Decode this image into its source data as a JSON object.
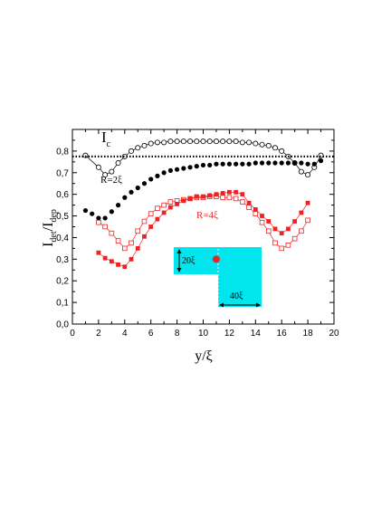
{
  "chart_data": {
    "type": "scatter",
    "xlabel": "y/ξ",
    "ylabel_main": "I",
    "ylabel_sub_num": "det",
    "ylabel_sub_den": "dep",
    "xlim": [
      0,
      20
    ],
    "ylim": [
      0.0,
      0.9
    ],
    "x_ticks": [
      0,
      2,
      4,
      6,
      8,
      10,
      12,
      14,
      16,
      18,
      20
    ],
    "y_ticks": [
      0.0,
      0.1,
      0.2,
      0.3,
      0.4,
      0.5,
      0.6,
      0.7,
      0.8
    ],
    "y_tick_labels": [
      "0,0",
      "0,1",
      "0,2",
      "0,3",
      "0,4",
      "0,5",
      "0,6",
      "0,7",
      "0,8"
    ],
    "grid": false,
    "reference_line": {
      "label": "I",
      "label_sub": "c",
      "value": 0.775,
      "style": "dotted"
    },
    "series": [
      {
        "marker": "circle-open",
        "color": "#000000",
        "connected": true,
        "x": [
          1,
          2,
          2.5,
          3,
          3.5,
          4,
          4.5,
          5,
          5.5,
          6,
          6.5,
          7,
          7.5,
          8,
          8.5,
          9,
          9.5,
          10,
          10.5,
          11,
          11.5,
          12,
          12.5,
          13,
          13.5,
          14,
          14.5,
          15,
          15.5,
          16,
          16.5,
          17,
          17.5,
          18,
          18.5,
          19
        ],
        "y": [
          0.78,
          0.725,
          0.69,
          0.705,
          0.745,
          0.775,
          0.8,
          0.815,
          0.825,
          0.835,
          0.84,
          0.84,
          0.845,
          0.845,
          0.845,
          0.845,
          0.845,
          0.845,
          0.845,
          0.845,
          0.845,
          0.845,
          0.845,
          0.84,
          0.84,
          0.835,
          0.83,
          0.825,
          0.815,
          0.8,
          0.775,
          0.745,
          0.705,
          0.69,
          0.725,
          0.78
        ]
      },
      {
        "marker": "circle-filled",
        "color": "#000000",
        "connected": false,
        "x": [
          1,
          1.5,
          2,
          2.5,
          3,
          3.5,
          4,
          4.5,
          5,
          5.5,
          6,
          6.5,
          7,
          7.5,
          8,
          8.5,
          9,
          9.5,
          10,
          10.5,
          11,
          11.5,
          12,
          12.5,
          13,
          13.5,
          14,
          14.5,
          15,
          15.5,
          16,
          16.5,
          17,
          17.5,
          18,
          18.5,
          19
        ],
        "y": [
          0.525,
          0.51,
          0.49,
          0.49,
          0.52,
          0.55,
          0.585,
          0.61,
          0.63,
          0.65,
          0.67,
          0.685,
          0.7,
          0.71,
          0.715,
          0.72,
          0.725,
          0.73,
          0.735,
          0.735,
          0.74,
          0.74,
          0.74,
          0.74,
          0.74,
          0.74,
          0.745,
          0.745,
          0.745,
          0.745,
          0.745,
          0.745,
          0.745,
          0.745,
          0.74,
          0.74,
          0.755
        ]
      },
      {
        "name": "R=2ξ",
        "marker": "square-open",
        "color": "#ee2222",
        "connected": true,
        "x": [
          2,
          2.5,
          3,
          3.5,
          4,
          4.5,
          5,
          5.5,
          6,
          6.5,
          7,
          7.5,
          8,
          8.5,
          9,
          9.5,
          10,
          10.5,
          11,
          11.5,
          12,
          12.5,
          13,
          13.5,
          14,
          14.5,
          15,
          15.5,
          16,
          16.5,
          17,
          17.5,
          18
        ],
        "y": [
          0.47,
          0.45,
          0.42,
          0.385,
          0.35,
          0.375,
          0.43,
          0.475,
          0.51,
          0.535,
          0.55,
          0.565,
          0.57,
          0.575,
          0.58,
          0.585,
          0.585,
          0.59,
          0.59,
          0.585,
          0.585,
          0.58,
          0.565,
          0.54,
          0.51,
          0.47,
          0.43,
          0.375,
          0.35,
          0.365,
          0.395,
          0.43,
          0.48
        ]
      },
      {
        "name": "R=4ξ",
        "marker": "square-filled",
        "color": "#ee2222",
        "connected": true,
        "x": [
          2,
          2.5,
          3,
          3.5,
          4,
          4.5,
          5,
          5.5,
          6,
          6.5,
          7,
          7.5,
          8,
          8.5,
          9,
          9.5,
          10,
          10.5,
          11,
          11.5,
          12,
          12.5,
          13,
          13.5,
          14,
          14.5,
          15,
          15.5,
          16,
          16.5,
          17,
          17.5,
          18
        ],
        "y": [
          0.33,
          0.305,
          0.29,
          0.275,
          0.265,
          0.3,
          0.35,
          0.405,
          0.45,
          0.485,
          0.515,
          0.54,
          0.555,
          0.57,
          0.58,
          0.59,
          0.59,
          0.595,
          0.6,
          0.605,
          0.61,
          0.61,
          0.6,
          0.56,
          0.53,
          0.5,
          0.475,
          0.44,
          0.42,
          0.44,
          0.475,
          0.515,
          0.56
        ]
      }
    ],
    "annotations": [
      {
        "text": "R=2ξ",
        "color": "#000000"
      },
      {
        "text": "R=4ξ",
        "color": "#ee2222"
      },
      {
        "text": "20ξ",
        "color": "#000000"
      },
      {
        "text": "40ξ",
        "color": "#000000"
      }
    ],
    "inset": {
      "fill": "#00e5ee",
      "dot_color": "#ee2222",
      "dot_at": [
        11.0,
        0.3
      ],
      "dashed_color": "#ffffff"
    }
  }
}
